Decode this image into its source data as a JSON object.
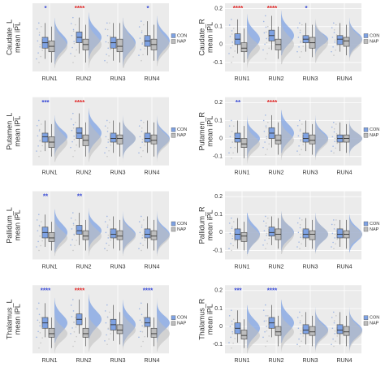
{
  "chart_data": [
    {
      "type": "box",
      "ylabel": [
        "Caudate_L",
        "mean iPL"
      ],
      "categories": [
        "RUN1",
        "RUN2",
        "RUN3",
        "RUN4"
      ],
      "ylim": [
        -0.15,
        0.23
      ],
      "series": [
        {
          "name": "CON",
          "color": "#7ea2e3",
          "values": [
            [
              -0.08,
              -0.02,
              0.01,
              0.04,
              0.12
            ],
            [
              -0.05,
              0.01,
              0.04,
              0.07,
              0.15
            ],
            [
              -0.09,
              -0.02,
              0.01,
              0.04,
              0.12
            ],
            [
              -0.06,
              -0.01,
              0.02,
              0.05,
              0.13
            ]
          ]
        },
        {
          "name": "NAP",
          "color": "#bdbdbd",
          "values": [
            [
              -0.1,
              -0.04,
              -0.01,
              0.02,
              0.1
            ],
            [
              -0.1,
              -0.03,
              0.0,
              0.03,
              0.11
            ],
            [
              -0.1,
              -0.04,
              -0.01,
              0.03,
              0.12
            ],
            [
              -0.09,
              -0.03,
              0.0,
              0.03,
              0.11
            ]
          ]
        }
      ],
      "stars": [
        "*",
        "****",
        null,
        "*"
      ],
      "star_colors": [
        "#3a4bd6",
        "#e02828",
        null,
        "#3a4bd6"
      ]
    },
    {
      "type": "box",
      "ylabel": [
        "Caudate_R",
        "mean iPL"
      ],
      "categories": [
        "RUN1",
        "RUN2",
        "RUN3",
        "RUN4"
      ],
      "ylim": [
        -0.15,
        0.23
      ],
      "yticks": [
        -0.1,
        0,
        0.1,
        0.2
      ],
      "series": [
        {
          "name": "CON",
          "color": "#7ea2e3",
          "values": [
            [
              -0.05,
              0.0,
              0.03,
              0.06,
              0.14
            ],
            [
              -0.03,
              0.02,
              0.05,
              0.08,
              0.16
            ],
            [
              -0.04,
              0.01,
              0.03,
              0.05,
              0.12
            ],
            [
              -0.04,
              0.0,
              0.03,
              0.05,
              0.12
            ]
          ]
        },
        {
          "name": "NAP",
          "color": "#bdbdbd",
          "values": [
            [
              -0.1,
              -0.04,
              -0.02,
              0.01,
              0.09
            ],
            [
              -0.08,
              -0.03,
              0.0,
              0.03,
              0.1
            ],
            [
              -0.07,
              -0.02,
              0.01,
              0.04,
              0.11
            ],
            [
              -0.06,
              -0.01,
              0.02,
              0.04,
              0.11
            ]
          ]
        }
      ],
      "stars": [
        "****",
        "****",
        "*",
        null
      ],
      "star_colors": [
        "#e02828",
        "#e02828",
        "#3a4bd6",
        null
      ]
    },
    {
      "type": "box",
      "ylabel": [
        "Putamen_L",
        "mean iPL"
      ],
      "categories": [
        "RUN1",
        "RUN2",
        "RUN3",
        "RUN4"
      ],
      "ylim": [
        -0.15,
        0.23
      ],
      "series": [
        {
          "name": "CON",
          "color": "#7ea2e3",
          "values": [
            [
              -0.07,
              -0.02,
              0.01,
              0.03,
              0.1
            ],
            [
              -0.05,
              0.0,
              0.03,
              0.06,
              0.14
            ],
            [
              -0.08,
              -0.02,
              0.0,
              0.03,
              0.1
            ],
            [
              -0.08,
              -0.02,
              0.0,
              0.03,
              0.1
            ]
          ]
        },
        {
          "name": "NAP",
          "color": "#bdbdbd",
          "values": [
            [
              -0.1,
              -0.05,
              -0.02,
              0.01,
              0.08
            ],
            [
              -0.1,
              -0.04,
              -0.01,
              0.02,
              0.09
            ],
            [
              -0.1,
              -0.03,
              0.0,
              0.02,
              0.09
            ],
            [
              -0.1,
              -0.03,
              -0.01,
              0.02,
              0.09
            ]
          ]
        }
      ],
      "stars": [
        "***",
        "****",
        null,
        null
      ],
      "star_colors": [
        "#3a4bd6",
        "#e02828",
        null,
        null
      ]
    },
    {
      "type": "box",
      "ylabel": [
        "Putamen_R",
        "mean iPL"
      ],
      "categories": [
        "RUN1",
        "RUN2",
        "RUN3",
        "RUN4"
      ],
      "ylim": [
        -0.15,
        0.23
      ],
      "yticks": [
        -0.1,
        0,
        0.1,
        0.2
      ],
      "series": [
        {
          "name": "CON",
          "color": "#7ea2e3",
          "values": [
            [
              -0.08,
              -0.02,
              0.0,
              0.03,
              0.1
            ],
            [
              -0.05,
              0.0,
              0.03,
              0.06,
              0.13
            ],
            [
              -0.07,
              -0.02,
              0.0,
              0.03,
              0.1
            ],
            [
              -0.07,
              -0.02,
              0.0,
              0.02,
              0.09
            ]
          ]
        },
        {
          "name": "NAP",
          "color": "#bdbdbd",
          "values": [
            [
              -0.11,
              -0.05,
              -0.03,
              0.0,
              0.07
            ],
            [
              -0.09,
              -0.03,
              -0.01,
              0.02,
              0.09
            ],
            [
              -0.09,
              -0.03,
              -0.01,
              0.02,
              0.08
            ],
            [
              -0.08,
              -0.02,
              0.0,
              0.02,
              0.08
            ]
          ]
        }
      ],
      "stars": [
        "**",
        "****",
        null,
        null
      ],
      "star_colors": [
        "#3a4bd6",
        "#e02828",
        null,
        null
      ]
    },
    {
      "type": "box",
      "ylabel": [
        "Pallidum_L",
        "mean iPL"
      ],
      "categories": [
        "RUN1",
        "RUN2",
        "RUN3",
        "RUN4"
      ],
      "ylim": [
        -0.15,
        0.23
      ],
      "series": [
        {
          "name": "CON",
          "color": "#7ea2e3",
          "values": [
            [
              -0.08,
              -0.03,
              0.0,
              0.03,
              0.1
            ],
            [
              -0.07,
              -0.01,
              0.01,
              0.04,
              0.11
            ],
            [
              -0.09,
              -0.03,
              -0.01,
              0.02,
              0.09
            ],
            [
              -0.09,
              -0.03,
              -0.01,
              0.02,
              0.09
            ]
          ]
        },
        {
          "name": "NAP",
          "color": "#bdbdbd",
          "values": [
            [
              -0.1,
              -0.05,
              -0.03,
              0.0,
              0.06
            ],
            [
              -0.1,
              -0.04,
              -0.02,
              0.01,
              0.07
            ],
            [
              -0.1,
              -0.04,
              -0.02,
              0.01,
              0.07
            ],
            [
              -0.1,
              -0.04,
              -0.02,
              0.01,
              0.07
            ]
          ]
        }
      ],
      "stars": [
        "**",
        "**",
        null,
        null
      ],
      "star_colors": [
        "#3a4bd6",
        "#3a4bd6",
        null,
        null
      ]
    },
    {
      "type": "box",
      "ylabel": [
        "Pallidum_R",
        "mean iPL"
      ],
      "categories": [
        "RUN1",
        "RUN2",
        "RUN3",
        "RUN4"
      ],
      "ylim": [
        -0.15,
        0.23
      ],
      "yticks": [
        -0.1,
        0,
        0.1,
        0.2
      ],
      "series": [
        {
          "name": "CON",
          "color": "#7ea2e3",
          "values": [
            [
              -0.09,
              -0.04,
              -0.01,
              0.02,
              0.08
            ],
            [
              -0.07,
              -0.02,
              0.0,
              0.03,
              0.09
            ],
            [
              -0.08,
              -0.03,
              -0.01,
              0.02,
              0.08
            ],
            [
              -0.08,
              -0.03,
              -0.01,
              0.02,
              0.07
            ]
          ]
        },
        {
          "name": "NAP",
          "color": "#bdbdbd",
          "values": [
            [
              -0.1,
              -0.05,
              -0.02,
              0.0,
              0.06
            ],
            [
              -0.09,
              -0.04,
              -0.01,
              0.02,
              0.08
            ],
            [
              -0.09,
              -0.04,
              -0.01,
              0.01,
              0.07
            ],
            [
              -0.09,
              -0.03,
              -0.01,
              0.01,
              0.07
            ]
          ]
        }
      ],
      "stars": [
        null,
        null,
        null,
        null
      ],
      "star_colors": [
        null,
        null,
        null,
        null
      ]
    },
    {
      "type": "box",
      "ylabel": [
        "Thalamus_L",
        "mean iPL"
      ],
      "categories": [
        "RUN1",
        "RUN2",
        "RUN3",
        "RUN4"
      ],
      "ylim": [
        -0.15,
        0.23
      ],
      "series": [
        {
          "name": "CON",
          "color": "#7ea2e3",
          "values": [
            [
              -0.06,
              -0.01,
              0.02,
              0.05,
              0.13
            ],
            [
              -0.04,
              0.01,
              0.04,
              0.07,
              0.15
            ],
            [
              -0.08,
              -0.02,
              0.01,
              0.04,
              0.12
            ],
            [
              -0.06,
              0.0,
              0.02,
              0.05,
              0.13
            ]
          ]
        },
        {
          "name": "NAP",
          "color": "#bdbdbd",
          "values": [
            [
              -0.12,
              -0.06,
              -0.04,
              -0.01,
              0.05
            ],
            [
              -0.11,
              -0.06,
              -0.04,
              -0.01,
              0.05
            ],
            [
              -0.1,
              -0.04,
              -0.02,
              0.01,
              0.08
            ],
            [
              -0.11,
              -0.06,
              -0.04,
              -0.01,
              0.05
            ]
          ]
        }
      ],
      "stars": [
        "****",
        "****",
        null,
        "****"
      ],
      "star_colors": [
        "#3a4bd6",
        "#e02828",
        null,
        "#3a4bd6"
      ]
    },
    {
      "type": "box",
      "ylabel": [
        "Thalamus_R",
        "mean iPL"
      ],
      "categories": [
        "RUN1",
        "RUN2",
        "RUN3",
        "RUN4"
      ],
      "ylim": [
        -0.15,
        0.23
      ],
      "yticks": [
        -0.1,
        0,
        0.1,
        0.2
      ],
      "series": [
        {
          "name": "CON",
          "color": "#7ea2e3",
          "values": [
            [
              -0.09,
              -0.04,
              -0.01,
              0.02,
              0.09
            ],
            [
              -0.06,
              -0.01,
              0.02,
              0.05,
              0.12
            ],
            [
              -0.1,
              -0.04,
              -0.02,
              0.01,
              0.08
            ],
            [
              -0.1,
              -0.04,
              -0.02,
              0.01,
              0.08
            ]
          ]
        },
        {
          "name": "NAP",
          "color": "#bdbdbd",
          "values": [
            [
              -0.12,
              -0.07,
              -0.05,
              -0.02,
              0.04
            ],
            [
              -0.11,
              -0.05,
              -0.03,
              0.0,
              0.06
            ],
            [
              -0.11,
              -0.05,
              -0.03,
              0.0,
              0.06
            ],
            [
              -0.11,
              -0.05,
              -0.03,
              0.0,
              0.06
            ]
          ]
        }
      ],
      "stars": [
        "***",
        "****",
        null,
        null
      ],
      "star_colors": [
        "#3a4bd6",
        "#3a4bd6",
        null,
        null
      ]
    }
  ]
}
